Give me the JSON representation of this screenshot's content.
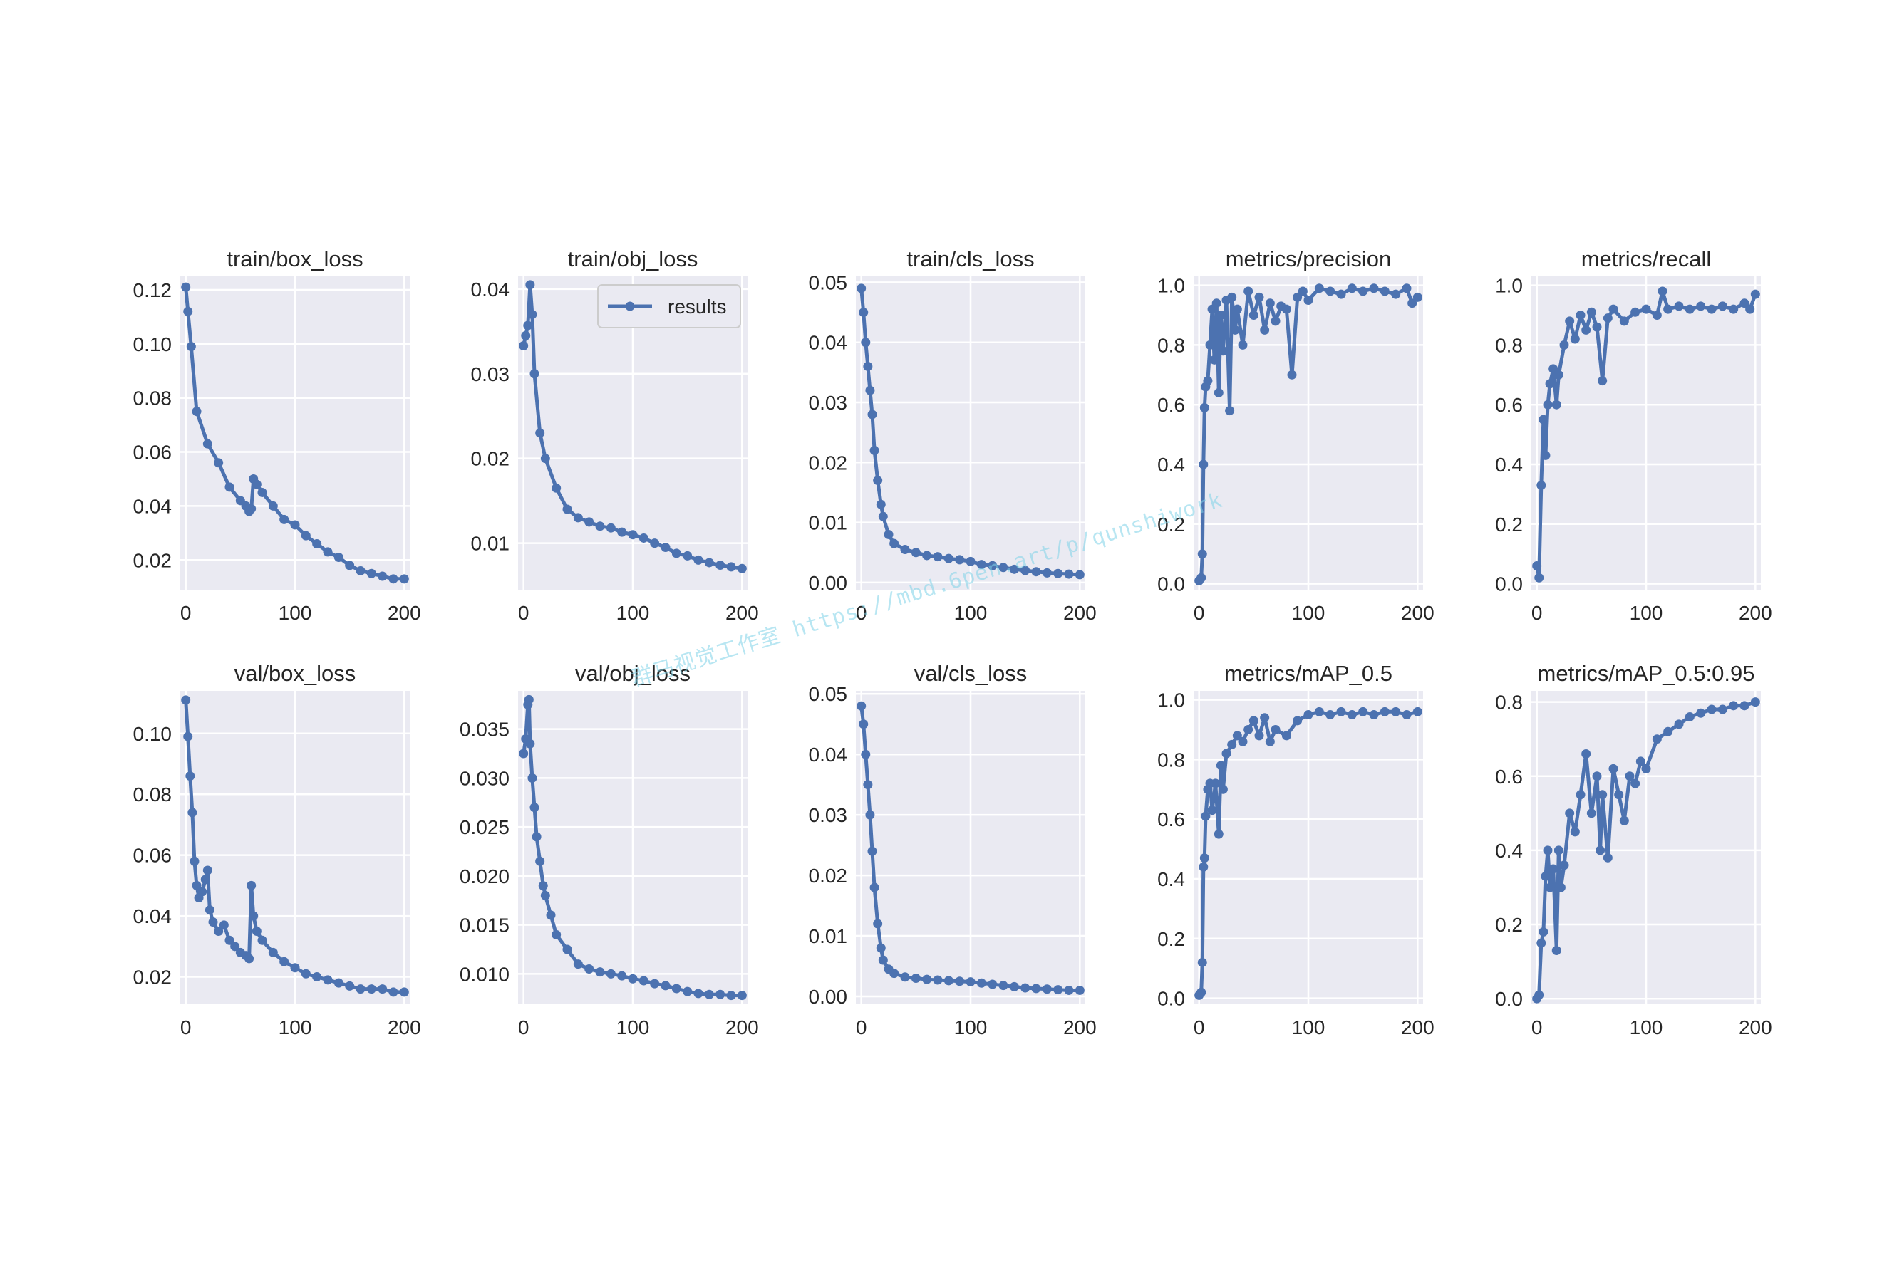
{
  "watermark": "群马视觉工作室 https://mbd.6pen.art/p/qunshiwork",
  "legend_label": "results",
  "colors": {
    "series": "#4c72b0",
    "axes_bg": "#eaeaf2",
    "grid": "#ffffff",
    "text": "#262626"
  },
  "chart_data": [
    {
      "type": "line",
      "title": "train/box_loss",
      "xlim": [
        -5,
        205
      ],
      "ylim": [
        0.009,
        0.125
      ],
      "xticks": [
        "0",
        "100",
        "200"
      ],
      "yticks": [
        "0.02",
        "0.04",
        "0.06",
        "0.08",
        "0.10",
        "0.12"
      ],
      "series": [
        {
          "x": [
            0,
            2,
            5,
            10,
            20,
            30,
            40,
            50,
            55,
            58,
            60,
            62,
            65,
            70,
            80,
            90,
            100,
            110,
            120,
            130,
            140,
            150,
            160,
            170,
            180,
            190,
            200
          ],
          "y": [
            0.121,
            0.112,
            0.099,
            0.075,
            0.063,
            0.056,
            0.047,
            0.042,
            0.04,
            0.038,
            0.039,
            0.05,
            0.048,
            0.045,
            0.04,
            0.035,
            0.033,
            0.029,
            0.026,
            0.023,
            0.021,
            0.018,
            0.016,
            0.015,
            0.014,
            0.013,
            0.013
          ]
        }
      ]
    },
    {
      "type": "line",
      "title": "train/obj_loss",
      "xlim": [
        -5,
        205
      ],
      "ylim": [
        0.0045,
        0.0415
      ],
      "xticks": [
        "0",
        "100",
        "200"
      ],
      "yticks": [
        "0.01",
        "0.02",
        "0.03",
        "0.04"
      ],
      "legend": "upper right",
      "series": [
        {
          "x": [
            0,
            2,
            4,
            6,
            8,
            10,
            15,
            20,
            30,
            40,
            50,
            60,
            70,
            80,
            90,
            100,
            110,
            120,
            130,
            140,
            150,
            160,
            170,
            180,
            190,
            200
          ],
          "y": [
            0.0333,
            0.0345,
            0.0357,
            0.0405,
            0.037,
            0.03,
            0.023,
            0.02,
            0.0165,
            0.014,
            0.013,
            0.0125,
            0.012,
            0.0118,
            0.0113,
            0.011,
            0.0106,
            0.01,
            0.0095,
            0.0088,
            0.0085,
            0.008,
            0.0077,
            0.0074,
            0.0072,
            0.007
          ]
        }
      ]
    },
    {
      "type": "line",
      "title": "train/cls_loss",
      "xlim": [
        -5,
        205
      ],
      "ylim": [
        -0.0012,
        0.051
      ],
      "xticks": [
        "0",
        "100",
        "200"
      ],
      "yticks": [
        "0.00",
        "0.01",
        "0.02",
        "0.03",
        "0.04",
        "0.05"
      ],
      "series": [
        {
          "x": [
            0,
            2,
            4,
            6,
            8,
            10,
            12,
            15,
            18,
            20,
            25,
            30,
            40,
            50,
            60,
            70,
            80,
            90,
            100,
            110,
            120,
            130,
            140,
            150,
            160,
            170,
            180,
            190,
            200
          ],
          "y": [
            0.049,
            0.045,
            0.04,
            0.036,
            0.032,
            0.028,
            0.022,
            0.017,
            0.013,
            0.011,
            0.008,
            0.0065,
            0.0055,
            0.005,
            0.0045,
            0.0043,
            0.004,
            0.0038,
            0.0035,
            0.003,
            0.0028,
            0.0025,
            0.0022,
            0.002,
            0.0018,
            0.0016,
            0.0015,
            0.0014,
            0.0013
          ]
        }
      ]
    },
    {
      "type": "line",
      "title": "metrics/precision",
      "xlim": [
        -5,
        205
      ],
      "ylim": [
        -0.02,
        1.03
      ],
      "xticks": [
        "0",
        "100",
        "200"
      ],
      "yticks": [
        "0.0",
        "0.2",
        "0.4",
        "0.6",
        "0.8",
        "1.0"
      ],
      "series": [
        {
          "x": [
            0,
            2,
            3,
            4,
            5,
            6,
            8,
            10,
            12,
            14,
            16,
            18,
            20,
            22,
            25,
            28,
            30,
            33,
            35,
            40,
            45,
            50,
            55,
            60,
            65,
            70,
            75,
            80,
            85,
            90,
            95,
            100,
            110,
            120,
            130,
            140,
            150,
            160,
            170,
            180,
            190,
            195,
            200
          ],
          "y": [
            0.01,
            0.02,
            0.1,
            0.4,
            0.59,
            0.66,
            0.68,
            0.8,
            0.92,
            0.75,
            0.94,
            0.64,
            0.9,
            0.78,
            0.95,
            0.58,
            0.96,
            0.85,
            0.92,
            0.8,
            0.98,
            0.9,
            0.96,
            0.85,
            0.94,
            0.88,
            0.93,
            0.92,
            0.7,
            0.96,
            0.98,
            0.95,
            0.99,
            0.98,
            0.97,
            0.99,
            0.98,
            0.99,
            0.98,
            0.97,
            0.99,
            0.94,
            0.96
          ]
        }
      ]
    },
    {
      "type": "line",
      "title": "metrics/recall",
      "xlim": [
        -5,
        205
      ],
      "ylim": [
        -0.02,
        1.03
      ],
      "xticks": [
        "0",
        "100",
        "200"
      ],
      "yticks": [
        "0.0",
        "0.2",
        "0.4",
        "0.6",
        "0.8",
        "1.0"
      ],
      "series": [
        {
          "x": [
            0,
            2,
            4,
            6,
            8,
            10,
            12,
            15,
            18,
            20,
            25,
            30,
            35,
            40,
            45,
            50,
            55,
            60,
            65,
            70,
            80,
            90,
            100,
            110,
            115,
            120,
            130,
            140,
            150,
            160,
            170,
            180,
            190,
            195,
            200
          ],
          "y": [
            0.06,
            0.02,
            0.33,
            0.55,
            0.43,
            0.6,
            0.67,
            0.72,
            0.6,
            0.7,
            0.8,
            0.88,
            0.82,
            0.9,
            0.85,
            0.91,
            0.86,
            0.68,
            0.89,
            0.92,
            0.88,
            0.91,
            0.92,
            0.9,
            0.98,
            0.92,
            0.93,
            0.92,
            0.93,
            0.92,
            0.93,
            0.92,
            0.94,
            0.92,
            0.97
          ]
        }
      ]
    },
    {
      "type": "line",
      "title": "val/box_loss",
      "xlim": [
        -5,
        205
      ],
      "ylim": [
        0.011,
        0.114
      ],
      "xticks": [
        "0",
        "100",
        "200"
      ],
      "yticks": [
        "0.02",
        "0.04",
        "0.06",
        "0.08",
        "0.10"
      ],
      "series": [
        {
          "x": [
            0,
            2,
            4,
            6,
            8,
            10,
            12,
            15,
            18,
            20,
            22,
            25,
            30,
            35,
            40,
            45,
            50,
            55,
            58,
            60,
            62,
            65,
            70,
            80,
            90,
            100,
            110,
            120,
            130,
            140,
            150,
            160,
            170,
            180,
            190,
            200
          ],
          "y": [
            0.111,
            0.099,
            0.086,
            0.074,
            0.058,
            0.05,
            0.046,
            0.048,
            0.052,
            0.055,
            0.042,
            0.038,
            0.035,
            0.037,
            0.032,
            0.03,
            0.028,
            0.027,
            0.026,
            0.05,
            0.04,
            0.035,
            0.032,
            0.028,
            0.025,
            0.023,
            0.021,
            0.02,
            0.019,
            0.018,
            0.017,
            0.016,
            0.016,
            0.016,
            0.015,
            0.015
          ]
        }
      ]
    },
    {
      "type": "line",
      "title": "val/obj_loss",
      "xlim": [
        -5,
        205
      ],
      "ylim": [
        0.0069,
        0.0389
      ],
      "xticks": [
        "0",
        "100",
        "200"
      ],
      "yticks": [
        "0.010",
        "0.015",
        "0.020",
        "0.025",
        "0.030",
        "0.035"
      ],
      "series": [
        {
          "x": [
            0,
            2,
            4,
            5,
            6,
            8,
            10,
            12,
            15,
            18,
            20,
            25,
            30,
            40,
            50,
            60,
            70,
            80,
            90,
            100,
            110,
            120,
            130,
            140,
            150,
            160,
            170,
            180,
            190,
            200
          ],
          "y": [
            0.0325,
            0.034,
            0.0375,
            0.038,
            0.0335,
            0.03,
            0.027,
            0.024,
            0.0215,
            0.019,
            0.018,
            0.016,
            0.014,
            0.0125,
            0.011,
            0.0105,
            0.0102,
            0.01,
            0.0098,
            0.0095,
            0.0093,
            0.009,
            0.0088,
            0.0085,
            0.0082,
            0.008,
            0.0079,
            0.0079,
            0.0078,
            0.0078
          ]
        }
      ]
    },
    {
      "type": "line",
      "title": "val/cls_loss",
      "xlim": [
        -5,
        205
      ],
      "ylim": [
        -0.0013,
        0.0505
      ],
      "xticks": [
        "0",
        "100",
        "200"
      ],
      "yticks": [
        "0.00",
        "0.01",
        "0.02",
        "0.03",
        "0.04",
        "0.05"
      ],
      "series": [
        {
          "x": [
            0,
            2,
            4,
            6,
            8,
            10,
            12,
            15,
            18,
            20,
            25,
            30,
            40,
            50,
            60,
            70,
            80,
            90,
            100,
            110,
            120,
            130,
            140,
            150,
            160,
            170,
            180,
            190,
            200
          ],
          "y": [
            0.048,
            0.045,
            0.04,
            0.035,
            0.03,
            0.024,
            0.018,
            0.012,
            0.008,
            0.006,
            0.0045,
            0.0038,
            0.0032,
            0.003,
            0.0028,
            0.0027,
            0.0026,
            0.0025,
            0.0024,
            0.0022,
            0.002,
            0.0018,
            0.0016,
            0.0014,
            0.0013,
            0.0012,
            0.0011,
            0.001,
            0.001
          ]
        }
      ]
    },
    {
      "type": "line",
      "title": "metrics/mAP_0.5",
      "xlim": [
        -5,
        205
      ],
      "ylim": [
        -0.02,
        1.03
      ],
      "xticks": [
        "0",
        "100",
        "200"
      ],
      "yticks": [
        "0.0",
        "0.2",
        "0.4",
        "0.6",
        "0.8",
        "1.0"
      ],
      "series": [
        {
          "x": [
            0,
            2,
            3,
            4,
            5,
            6,
            8,
            10,
            12,
            15,
            18,
            20,
            22,
            25,
            30,
            35,
            40,
            45,
            50,
            55,
            60,
            65,
            70,
            80,
            90,
            100,
            110,
            120,
            130,
            140,
            150,
            160,
            170,
            180,
            190,
            200
          ],
          "y": [
            0.01,
            0.02,
            0.12,
            0.44,
            0.47,
            0.61,
            0.7,
            0.72,
            0.63,
            0.72,
            0.55,
            0.78,
            0.7,
            0.82,
            0.85,
            0.88,
            0.86,
            0.9,
            0.93,
            0.88,
            0.94,
            0.86,
            0.9,
            0.88,
            0.93,
            0.95,
            0.96,
            0.95,
            0.96,
            0.95,
            0.96,
            0.95,
            0.96,
            0.96,
            0.95,
            0.96
          ]
        }
      ]
    },
    {
      "type": "line",
      "title": "metrics/mAP_0.5:0.95",
      "xlim": [
        -5,
        205
      ],
      "ylim": [
        -0.015,
        0.83
      ],
      "xticks": [
        "0",
        "100",
        "200"
      ],
      "yticks": [
        "0.0",
        "0.2",
        "0.4",
        "0.6",
        "0.8"
      ],
      "series": [
        {
          "x": [
            0,
            2,
            4,
            6,
            8,
            10,
            12,
            15,
            18,
            20,
            22,
            25,
            30,
            35,
            40,
            45,
            50,
            55,
            58,
            60,
            65,
            70,
            75,
            80,
            85,
            90,
            95,
            100,
            110,
            120,
            130,
            140,
            150,
            160,
            170,
            180,
            190,
            200
          ],
          "y": [
            0.0,
            0.01,
            0.15,
            0.18,
            0.33,
            0.4,
            0.3,
            0.35,
            0.13,
            0.4,
            0.3,
            0.36,
            0.5,
            0.45,
            0.55,
            0.66,
            0.5,
            0.6,
            0.4,
            0.55,
            0.38,
            0.62,
            0.55,
            0.48,
            0.6,
            0.58,
            0.64,
            0.62,
            0.7,
            0.72,
            0.74,
            0.76,
            0.77,
            0.78,
            0.78,
            0.79,
            0.79,
            0.8
          ]
        }
      ]
    }
  ]
}
